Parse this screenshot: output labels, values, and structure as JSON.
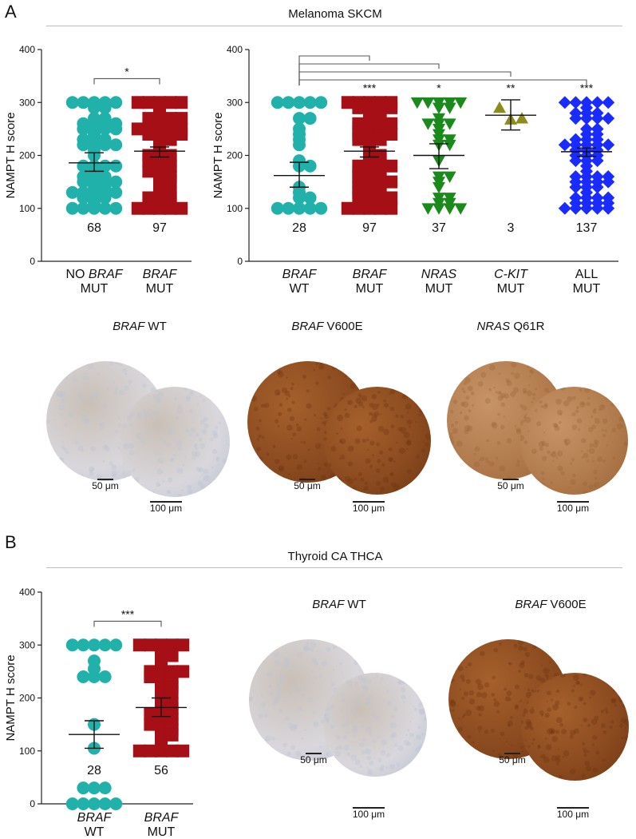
{
  "panels": {
    "a_letter": "A",
    "b_letter": "B",
    "a_title": "Melanoma SKCM",
    "b_title": "Thyroid CA THCA"
  },
  "ihc": {
    "a": [
      {
        "gene": "BRAF",
        "variant": "WT",
        "scale_small": "50 μm",
        "scale_large": "100 μm",
        "stain": "light"
      },
      {
        "gene": "BRAF",
        "variant": "V600E",
        "scale_small": "50 μm",
        "scale_large": "100 μm",
        "stain": "dark"
      },
      {
        "gene": "NRAS",
        "variant": "Q61R",
        "scale_small": "50 μm",
        "scale_large": "100 μm",
        "stain": "medium"
      }
    ],
    "b": [
      {
        "gene": "BRAF",
        "variant": "WT",
        "scale_small": "50 μm",
        "scale_large": "100 μm",
        "stain": "light"
      },
      {
        "gene": "BRAF",
        "variant": "V600E",
        "scale_small": "50 μm",
        "scale_large": "100 μm",
        "stain": "dark"
      }
    ]
  },
  "chart_data": [
    {
      "type": "scatter",
      "panel": "A-left",
      "ylabel": "NAMPT H score",
      "ylim": [
        0,
        400
      ],
      "yticks": [
        0,
        100,
        200,
        300,
        400
      ],
      "groups": [
        {
          "label_italic": "NO",
          "label_parts": [
            [
              "NO ",
              false
            ],
            [
              "BRAF",
              true
            ]
          ],
          "line2": "MUT",
          "n": "68",
          "color": "#20b2aa",
          "marker": "circle",
          "mean": 186,
          "sem_lo": 170,
          "sem_hi": 205
        },
        {
          "label_parts": [
            [
              "BRAF",
              true
            ]
          ],
          "line2": "MUT",
          "n": "97",
          "color": "#a50f15",
          "marker": "square",
          "mean": 208,
          "sem_lo": 197,
          "sem_hi": 216
        }
      ],
      "significance": [
        {
          "from": 0,
          "to": 1,
          "label": "*",
          "y": 345
        }
      ]
    },
    {
      "type": "scatter",
      "panel": "A-right",
      "ylabel": "NAMPT H score",
      "ylim": [
        0,
        400
      ],
      "yticks": [
        0,
        100,
        200,
        300,
        400
      ],
      "groups": [
        {
          "label_parts": [
            [
              "BRAF",
              true
            ]
          ],
          "line2": "WT",
          "n": "28",
          "color": "#20b2aa",
          "marker": "circle",
          "mean": 162,
          "sem_lo": 140,
          "sem_hi": 187
        },
        {
          "label_parts": [
            [
              "BRAF",
              true
            ]
          ],
          "line2": "MUT",
          "n": "97",
          "color": "#a50f15",
          "marker": "square",
          "mean": 208,
          "sem_lo": 197,
          "sem_hi": 216
        },
        {
          "label_parts": [
            [
              "NRAS",
              true
            ]
          ],
          "line2": "MUT",
          "n": "37",
          "color": "#1a8a1a",
          "marker": "triangle-down",
          "mean": 200,
          "sem_lo": 175,
          "sem_hi": 222
        },
        {
          "label_parts": [
            [
              "C-KIT",
              true
            ]
          ],
          "line2": "MUT",
          "n": "3",
          "color": "#8c8c1a",
          "marker": "triangle-up",
          "mean": 276,
          "sem_lo": 248,
          "sem_hi": 305
        },
        {
          "label_parts": [
            [
              "ALL",
              false
            ]
          ],
          "line2": "MUT",
          "n": "137",
          "color": "#1a2bff",
          "marker": "diamond",
          "mean": 207,
          "sem_lo": 198,
          "sem_hi": 214
        }
      ],
      "significance": [
        {
          "from": 0,
          "to": 1,
          "label": "***"
        },
        {
          "from": 0,
          "to": 2,
          "label": "*"
        },
        {
          "from": 0,
          "to": 3,
          "label": "**"
        },
        {
          "from": 0,
          "to": 4,
          "label": "***"
        }
      ]
    },
    {
      "type": "scatter",
      "panel": "B-left",
      "ylabel": "NAMPT H score",
      "ylim": [
        0,
        400
      ],
      "yticks": [
        0,
        100,
        200,
        300,
        400
      ],
      "groups": [
        {
          "label_parts": [
            [
              "BRAF",
              true
            ]
          ],
          "line2": "WT",
          "n": "28",
          "color": "#20b2aa",
          "marker": "circle",
          "mean": 131,
          "sem_lo": 105,
          "sem_hi": 157
        },
        {
          "label_parts": [
            [
              "BRAF",
              true
            ]
          ],
          "line2": "MUT",
          "n": "56",
          "color": "#a50f15",
          "marker": "square",
          "mean": 182,
          "sem_lo": 165,
          "sem_hi": 200
        }
      ],
      "significance": [
        {
          "from": 0,
          "to": 1,
          "label": "***",
          "y": 345
        }
      ]
    }
  ]
}
